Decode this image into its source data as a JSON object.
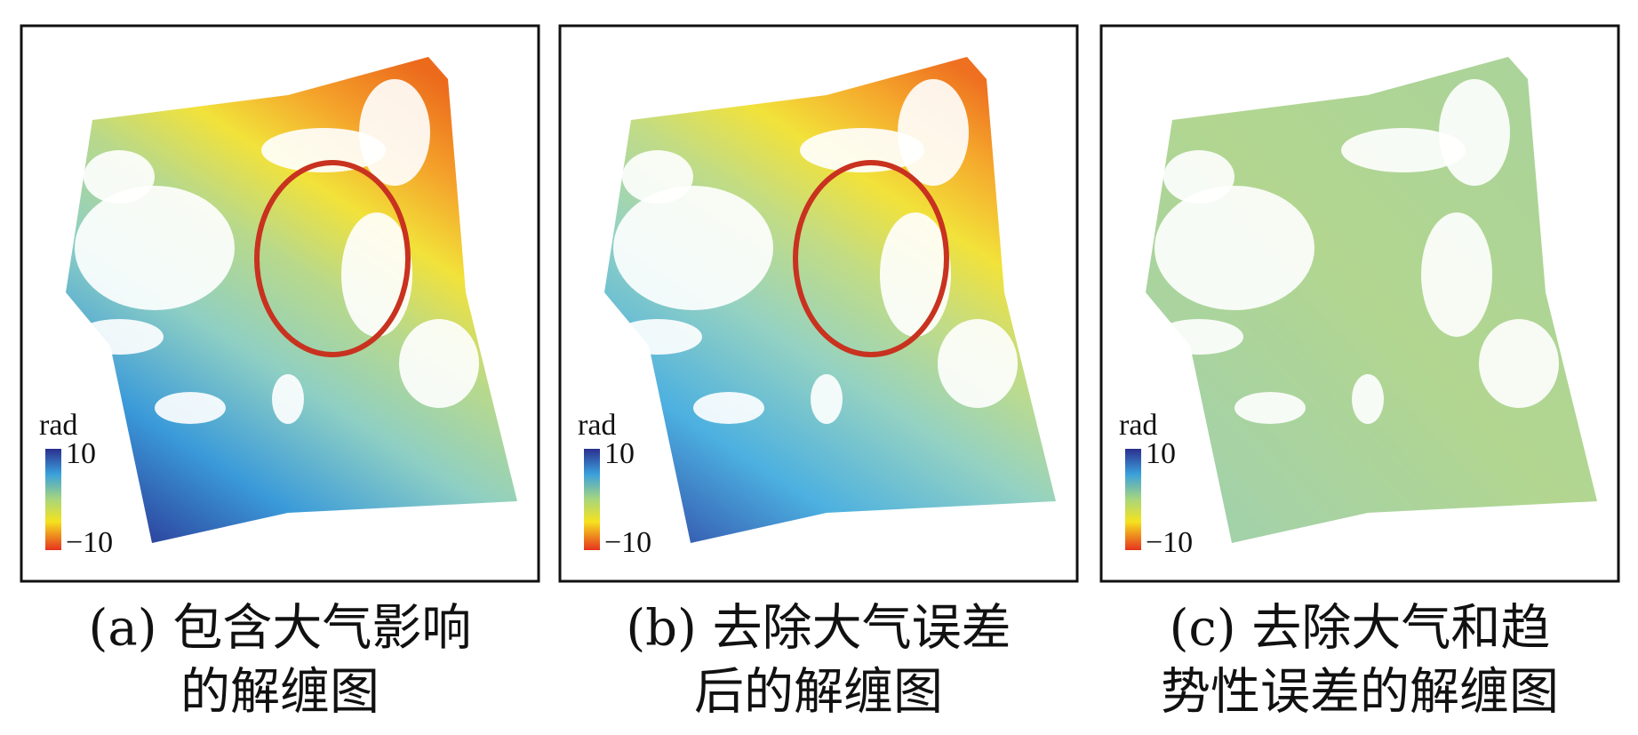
{
  "panels": [
    {
      "caption": [
        "(a) 包含大气影响",
        "的解缠图"
      ],
      "colorbar": {
        "unit": "rad",
        "ticks": [
          10,
          {
            "value": -10,
            "label": "−10"
          }
        ]
      }
    },
    {
      "caption": [
        "(b) 去除大气误差",
        "后的解缠图"
      ],
      "colorbar": {
        "unit": "rad",
        "ticks": [
          10,
          {
            "value": -10,
            "label": "−10"
          }
        ]
      }
    },
    {
      "caption": [
        "(c) 去除大气和趋",
        "势性误差的解缠图"
      ],
      "colorbar": {
        "unit": "rad",
        "ticks": [
          10,
          {
            "value": -10,
            "label": "−10"
          }
        ]
      }
    }
  ]
}
